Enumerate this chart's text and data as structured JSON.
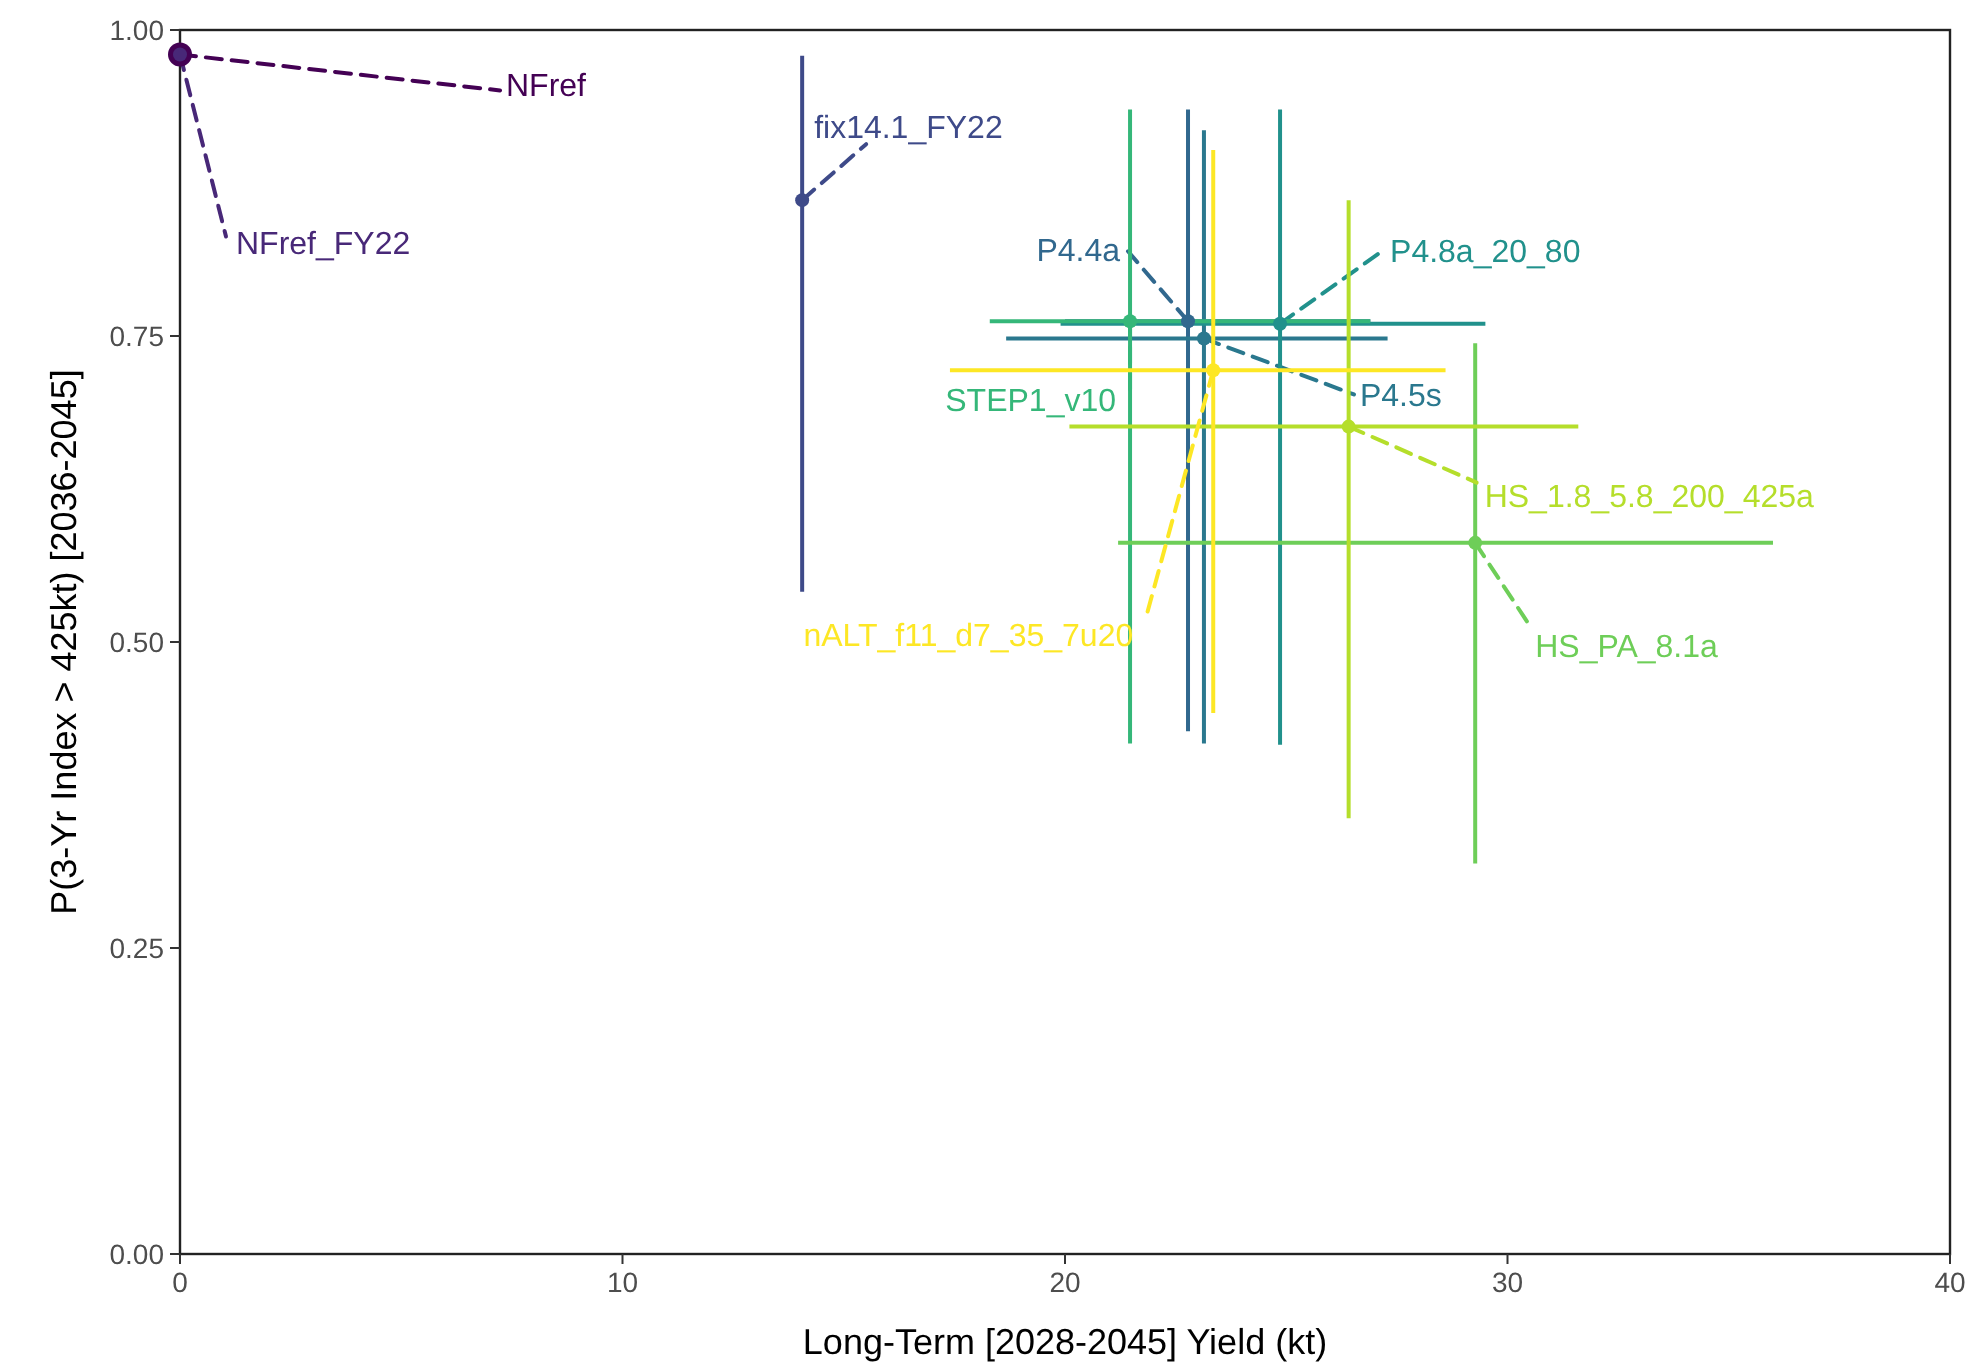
{
  "chart_data": {
    "type": "scatter",
    "xlabel": "Long-Term [2028-2045] Yield (kt)",
    "ylabel": "P(3-Yr Index > 425kt) [2036-2045]",
    "xlim": [
      0,
      40
    ],
    "xticks": [
      0,
      10,
      20,
      30,
      40
    ],
    "ylim": [
      0,
      1
    ],
    "yticks": [
      {
        "value": 0,
        "label": "0.00"
      },
      {
        "value": 0.25,
        "label": "0.25"
      },
      {
        "value": 0.5,
        "label": "0.50"
      },
      {
        "value": 0.75,
        "label": "0.75"
      },
      {
        "value": 1,
        "label": "1.00"
      }
    ],
    "grid": false,
    "marker": "circle",
    "series": [
      {
        "name": "NFref",
        "color": "#440154",
        "x": [
          0
        ],
        "values": [
          0.98
        ]
      },
      {
        "name": "NFref_FY22",
        "color": "#482878",
        "x": [
          0
        ],
        "values": [
          0.98
        ]
      },
      {
        "name": "fix14.1_FY22",
        "color": "#3e4a89",
        "x": [
          14.06
        ],
        "values": [
          0.861
        ],
        "errors": [
          [
            0.541,
            0.979
          ]
        ]
      },
      {
        "name": "P4.4a",
        "color": "#31688e",
        "x": [
          22.78
        ],
        "values": [
          0.762
        ],
        "errors": [
          [
            0.427,
            0.935
          ]
        ],
        "xerrors": [
          [
            20.0,
            26.9
          ]
        ]
      },
      {
        "name": "P4.5s",
        "color": "#2a788e",
        "x": [
          23.14
        ],
        "values": [
          0.748
        ],
        "errors": [
          [
            0.417,
            0.918
          ]
        ],
        "xerrors": [
          [
            18.67,
            27.29
          ]
        ]
      },
      {
        "name": "P4.8a_20_80",
        "color": "#21918c",
        "x": [
          24.86
        ],
        "values": [
          0.76
        ],
        "errors": [
          [
            0.416,
            0.935
          ]
        ],
        "xerrors": [
          [
            19.9,
            29.5
          ]
        ]
      },
      {
        "name": "STEP1_v10",
        "color": "#35b779",
        "x": [
          21.47
        ],
        "values": [
          0.762
        ],
        "errors": [
          [
            0.417,
            0.935
          ]
        ],
        "xerrors": [
          [
            18.3,
            26.9
          ]
        ]
      },
      {
        "name": "HS_PA_8.1a",
        "color": "#6ece58",
        "x": [
          29.27
        ],
        "values": [
          0.581
        ],
        "errors": [
          [
            0.319,
            0.744
          ]
        ],
        "xerrors": [
          [
            21.2,
            36.0
          ]
        ]
      },
      {
        "name": "HS_1.8_5.8_200_425a",
        "color": "#b5de2b",
        "x": [
          26.41
        ],
        "values": [
          0.676
        ],
        "errors": [
          [
            0.356,
            0.861
          ]
        ],
        "xerrors": [
          [
            20.1,
            31.6
          ]
        ]
      },
      {
        "name": "nALT_f11_d7_35_7u20",
        "color": "#fde725",
        "x": [
          23.35
        ],
        "values": [
          0.722
        ],
        "errors": [
          [
            0.442,
            0.902
          ]
        ],
        "xerrors": [
          [
            17.4,
            28.6
          ]
        ]
      }
    ]
  }
}
